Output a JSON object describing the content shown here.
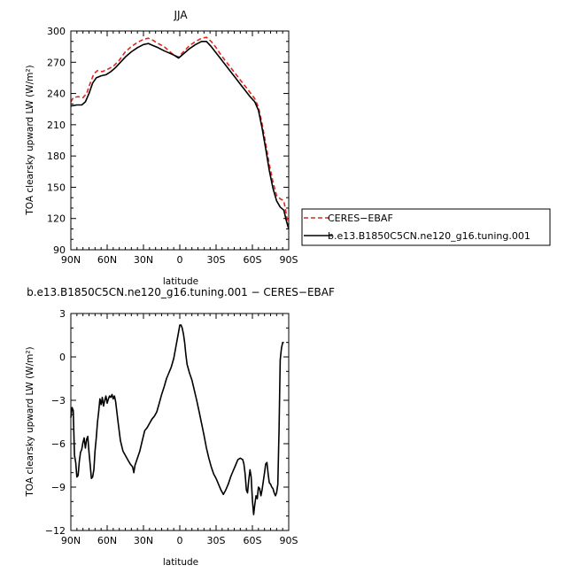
{
  "chart_data": [
    {
      "type": "line",
      "title": "JJA",
      "xlabel": "latitude",
      "ylabel": "TOA clearsky upward LW (W/m²)",
      "xlim": [
        90,
        -90
      ],
      "x_ticks": [
        90,
        60,
        30,
        0,
        -30,
        -60,
        -90
      ],
      "x_ticklabels": [
        "90N",
        "60N",
        "30N",
        "0",
        "30S",
        "60S",
        "90S"
      ],
      "ylim": [
        90,
        300
      ],
      "y_ticks": [
        90,
        120,
        150,
        180,
        210,
        240,
        270,
        300
      ],
      "y_ticklabels": [
        "90",
        "120",
        "150",
        "180",
        "210",
        "240",
        "270",
        "300"
      ],
      "legend": "right",
      "series": [
        {
          "name": "CERES−EBAF",
          "color": "#e3261c",
          "dash": "dashed",
          "points": [
            [
              90,
              232
            ],
            [
              88,
              236
            ],
            [
              84,
              237
            ],
            [
              80,
              236
            ],
            [
              77,
              240
            ],
            [
              74,
              250
            ],
            [
              71,
              259
            ],
            [
              68,
              262
            ],
            [
              64,
              261
            ],
            [
              60,
              263
            ],
            [
              55,
              266
            ],
            [
              50,
              272
            ],
            [
              45,
              280
            ],
            [
              40,
              285
            ],
            [
              35,
              289
            ],
            [
              30,
              292
            ],
            [
              26,
              293
            ],
            [
              22,
              291
            ],
            [
              18,
              288
            ],
            [
              13,
              285
            ],
            [
              9,
              281
            ],
            [
              5,
              277
            ],
            [
              1,
              275
            ],
            [
              -3,
              280
            ],
            [
              -8,
              286
            ],
            [
              -13,
              290
            ],
            [
              -18,
              293
            ],
            [
              -22,
              294
            ],
            [
              -26,
              290
            ],
            [
              -30,
              284
            ],
            [
              -34,
              277
            ],
            [
              -38,
              271
            ],
            [
              -42,
              265
            ],
            [
              -46,
              259
            ],
            [
              -50,
              253
            ],
            [
              -54,
              247
            ],
            [
              -58,
              241
            ],
            [
              -62,
              235
            ],
            [
              -65,
              227
            ],
            [
              -68,
              211
            ],
            [
              -71,
              192
            ],
            [
              -74,
              172
            ],
            [
              -77,
              155
            ],
            [
              -80,
              142
            ],
            [
              -83,
              139
            ],
            [
              -86,
              137
            ],
            [
              -88,
              124
            ],
            [
              -90,
              110
            ]
          ]
        },
        {
          "name": "b.e13.B1850C5CN.ne120_g16.tuning.001",
          "color": "#000000",
          "dash": "solid",
          "points": [
            [
              90,
              228
            ],
            [
              85,
              229
            ],
            [
              81,
              229
            ],
            [
              78,
              232
            ],
            [
              75,
              240
            ],
            [
              72,
              250
            ],
            [
              69,
              255
            ],
            [
              65,
              257
            ],
            [
              61,
              258
            ],
            [
              57,
              261
            ],
            [
              53,
              265
            ],
            [
              49,
              270
            ],
            [
              45,
              275
            ],
            [
              40,
              280
            ],
            [
              35,
              284
            ],
            [
              30,
              287
            ],
            [
              26,
              288
            ],
            [
              22,
              286
            ],
            [
              18,
              284
            ],
            [
              13,
              281
            ],
            [
              9,
              279
            ],
            [
              5,
              277
            ],
            [
              1,
              274
            ],
            [
              -3,
              278
            ],
            [
              -8,
              283
            ],
            [
              -13,
              287
            ],
            [
              -18,
              290
            ],
            [
              -22,
              290
            ],
            [
              -26,
              285
            ],
            [
              -30,
              279
            ],
            [
              -34,
              273
            ],
            [
              -38,
              267
            ],
            [
              -42,
              261
            ],
            [
              -46,
              255
            ],
            [
              -50,
              249
            ],
            [
              -54,
              243
            ],
            [
              -58,
              237
            ],
            [
              -62,
              232
            ],
            [
              -65,
              224
            ],
            [
              -68,
              207
            ],
            [
              -71,
              187
            ],
            [
              -74,
              166
            ],
            [
              -77,
              149
            ],
            [
              -80,
              137
            ],
            [
              -83,
              131
            ],
            [
              -86,
              128
            ],
            [
              -88,
              118
            ],
            [
              -90,
              110
            ]
          ]
        }
      ]
    },
    {
      "type": "line",
      "title": "b.e13.B1850C5CN.ne120_g16.tuning.001 − CERES−EBAF",
      "xlabel": "latitude",
      "ylabel": "TOA clearsky upward LW (W/m²)",
      "xlim": [
        90,
        -90
      ],
      "x_ticks": [
        90,
        60,
        30,
        0,
        -30,
        -60,
        -90
      ],
      "x_ticklabels": [
        "90N",
        "60N",
        "30N",
        "0",
        "30S",
        "60S",
        "90S"
      ],
      "ylim": [
        -12,
        3
      ],
      "y_ticks": [
        -12,
        -9,
        -6,
        -3,
        0,
        3
      ],
      "y_ticklabels": [
        "−12",
        "−9",
        "−6",
        "−3",
        "0",
        "3"
      ],
      "series": [
        {
          "color": "#000000",
          "dash": "solid",
          "points": [
            [
              90,
              -4.2
            ],
            [
              89,
              -3.5
            ],
            [
              88,
              -3.7
            ],
            [
              87,
              -6.8
            ],
            [
              86,
              -7.3
            ],
            [
              85,
              -8.3
            ],
            [
              84,
              -8.2
            ],
            [
              83,
              -7.2
            ],
            [
              82,
              -6.6
            ],
            [
              81,
              -6.4
            ],
            [
              80,
              -5.9
            ],
            [
              79,
              -5.6
            ],
            [
              78,
              -6.3
            ],
            [
              77,
              -5.7
            ],
            [
              76,
              -5.5
            ],
            [
              75,
              -6.6
            ],
            [
              74,
              -7.5
            ],
            [
              73,
              -8.4
            ],
            [
              72,
              -8.3
            ],
            [
              71,
              -7.8
            ],
            [
              70,
              -6.5
            ],
            [
              69,
              -5.6
            ],
            [
              68,
              -4.5
            ],
            [
              67,
              -3.8
            ],
            [
              66,
              -2.9
            ],
            [
              65,
              -3.3
            ],
            [
              64,
              -2.8
            ],
            [
              63,
              -3.4
            ],
            [
              62,
              -3.0
            ],
            [
              61,
              -2.7
            ],
            [
              60,
              -3.2
            ],
            [
              59,
              -2.9
            ],
            [
              58,
              -2.7
            ],
            [
              57,
              -2.8
            ],
            [
              56,
              -2.6
            ],
            [
              55,
              -2.9
            ],
            [
              54,
              -2.7
            ],
            [
              53,
              -3.1
            ],
            [
              51,
              -4.5
            ],
            [
              49,
              -5.8
            ],
            [
              47,
              -6.5
            ],
            [
              45,
              -6.8
            ],
            [
              43,
              -7.1
            ],
            [
              41,
              -7.4
            ],
            [
              39,
              -7.6
            ],
            [
              38,
              -8.0
            ],
            [
              37,
              -7.5
            ],
            [
              35,
              -7.0
            ],
            [
              33,
              -6.5
            ],
            [
              31,
              -5.8
            ],
            [
              29,
              -5.1
            ],
            [
              27,
              -4.9
            ],
            [
              25,
              -4.6
            ],
            [
              23,
              -4.3
            ],
            [
              21,
              -4.1
            ],
            [
              19,
              -3.8
            ],
            [
              17,
              -3.2
            ],
            [
              15,
              -2.6
            ],
            [
              13,
              -2.1
            ],
            [
              11,
              -1.5
            ],
            [
              9,
              -1.1
            ],
            [
              7,
              -0.7
            ],
            [
              5,
              -0.1
            ],
            [
              3,
              0.8
            ],
            [
              1,
              1.7
            ],
            [
              0,
              2.2
            ],
            [
              -1,
              2.2
            ],
            [
              -2,
              2.0
            ],
            [
              -3,
              1.6
            ],
            [
              -4,
              1.0
            ],
            [
              -5,
              0.2
            ],
            [
              -6,
              -0.5
            ],
            [
              -8,
              -1.1
            ],
            [
              -10,
              -1.6
            ],
            [
              -12,
              -2.3
            ],
            [
              -14,
              -3.0
            ],
            [
              -16,
              -3.8
            ],
            [
              -18,
              -4.6
            ],
            [
              -20,
              -5.4
            ],
            [
              -22,
              -6.3
            ],
            [
              -24,
              -7.0
            ],
            [
              -26,
              -7.6
            ],
            [
              -28,
              -8.1
            ],
            [
              -30,
              -8.4
            ],
            [
              -32,
              -8.8
            ],
            [
              -34,
              -9.2
            ],
            [
              -36,
              -9.5
            ],
            [
              -38,
              -9.2
            ],
            [
              -40,
              -8.8
            ],
            [
              -42,
              -8.3
            ],
            [
              -44,
              -7.9
            ],
            [
              -46,
              -7.5
            ],
            [
              -48,
              -7.1
            ],
            [
              -50,
              -7.0
            ],
            [
              -52,
              -7.1
            ],
            [
              -53,
              -7.4
            ],
            [
              -54,
              -8.1
            ],
            [
              -55,
              -9.2
            ],
            [
              -56,
              -9.4
            ],
            [
              -57,
              -8.5
            ],
            [
              -58,
              -7.8
            ],
            [
              -59,
              -8.3
            ],
            [
              -60,
              -9.9
            ],
            [
              -61,
              -10.9
            ],
            [
              -62,
              -10.2
            ],
            [
              -63,
              -9.6
            ],
            [
              -64,
              -9.8
            ],
            [
              -65,
              -9.0
            ],
            [
              -66,
              -9.1
            ],
            [
              -67,
              -9.6
            ],
            [
              -68,
              -9.2
            ],
            [
              -69,
              -8.6
            ],
            [
              -70,
              -8.0
            ],
            [
              -71,
              -7.4
            ],
            [
              -72,
              -7.3
            ],
            [
              -73,
              -8.1
            ],
            [
              -74,
              -8.7
            ],
            [
              -75,
              -8.8
            ],
            [
              -76,
              -9.0
            ],
            [
              -77,
              -9.1
            ],
            [
              -78,
              -9.4
            ],
            [
              -79,
              -9.6
            ],
            [
              -80,
              -9.4
            ],
            [
              -81,
              -8.8
            ],
            [
              -82,
              -5.0
            ],
            [
              -83,
              -0.2
            ],
            [
              -84,
              0.6
            ],
            [
              -85,
              1.0
            ],
            [
              -86,
              1.0
            ]
          ]
        }
      ]
    }
  ]
}
